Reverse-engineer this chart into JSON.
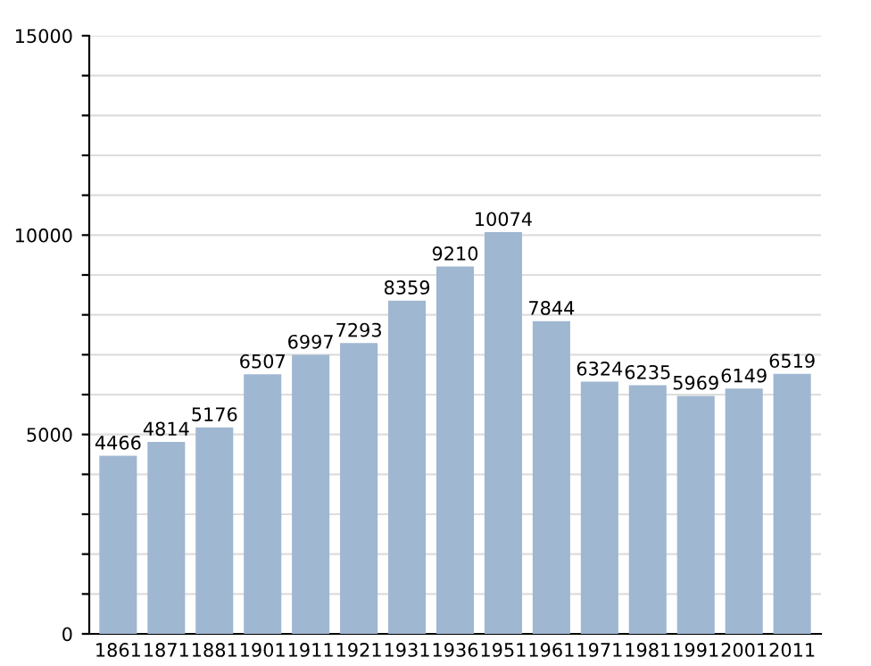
{
  "chart_data": {
    "type": "bar",
    "categories": [
      "1861",
      "1871",
      "1881",
      "1901",
      "1911",
      "1921",
      "1931",
      "1936",
      "1951",
      "1961",
      "1971",
      "1981",
      "1991",
      "2001",
      "2011"
    ],
    "values": [
      4466,
      4814,
      5176,
      6507,
      6997,
      7293,
      8359,
      9210,
      10074,
      7844,
      6324,
      6235,
      5969,
      6149,
      6519
    ],
    "color": "#9fb7d0",
    "ylim": [
      0,
      15000
    ],
    "yticks": [
      0,
      {
        "value": 1000,
        "label": null
      },
      {
        "value": 2000,
        "label": null
      },
      {
        "value": 3000,
        "label": null
      },
      {
        "value": 4000,
        "label": null
      },
      5000,
      {
        "value": 6000,
        "label": null
      },
      {
        "value": 7000,
        "label": null
      },
      {
        "value": 8000,
        "label": null
      },
      {
        "value": 9000,
        "label": null
      },
      10000,
      {
        "value": 11000,
        "label": null
      },
      {
        "value": 12000,
        "label": null
      },
      {
        "value": 13000,
        "label": null
      },
      {
        "value": 14000,
        "label": null
      },
      15000
    ],
    "grid": "y",
    "data_labels": true
  }
}
